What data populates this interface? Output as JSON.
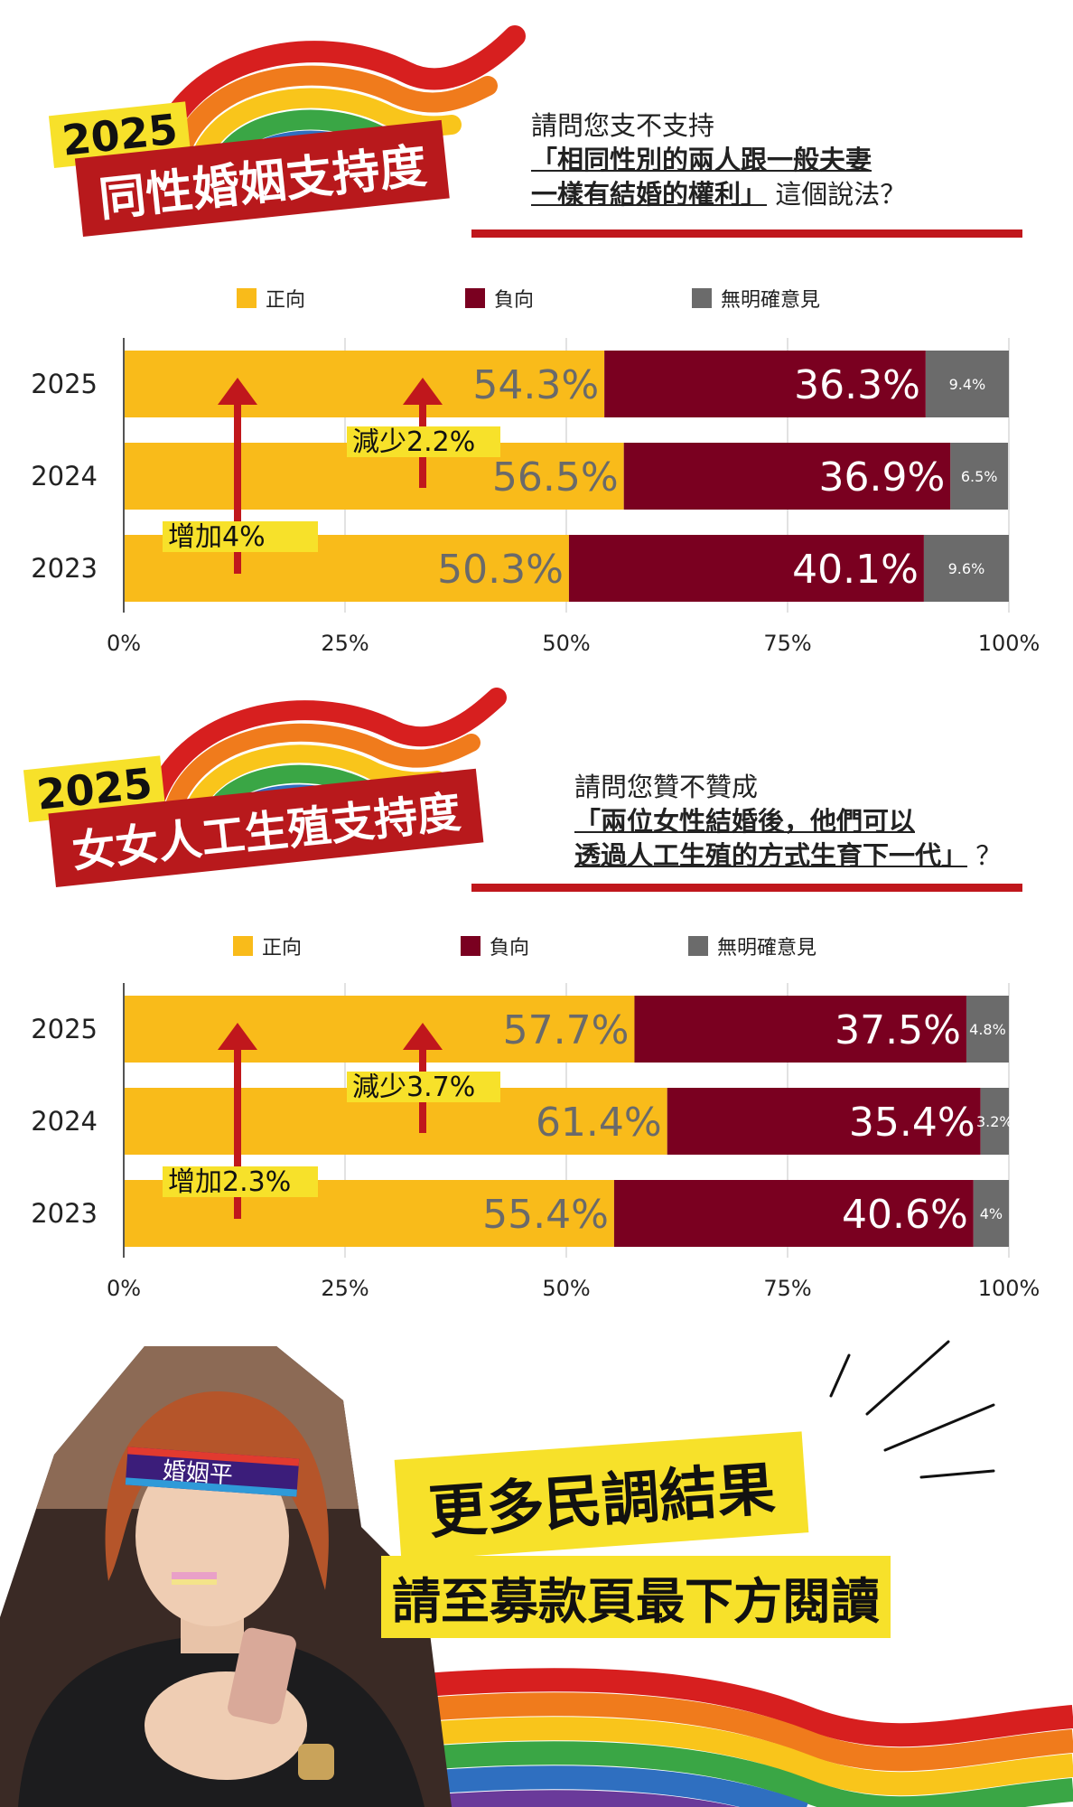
{
  "colors": {
    "positive": "#f9bb1a",
    "negative": "#7a0020",
    "no_opinion": "#6b6b6b",
    "accent_red": "#c0171c",
    "highlight": "#f7e12a"
  },
  "panel1": {
    "year": "2025",
    "title": "同性婚姻支持度",
    "question_prefix": "請問您支不支持",
    "question_hl1": "「相同性別的兩人跟一般夫妻",
    "question_hl2": "一樣有結婚的權利」",
    "question_suffix": "這個說法？",
    "legend": {
      "positive": "正向",
      "negative": "負向",
      "no_opinion": "無明確意見"
    },
    "annotation_down": "減少2.2%",
    "annotation_up": "增加4%"
  },
  "panel2": {
    "year": "2025",
    "title": "女女人工生殖支持度",
    "question_prefix": "請問您贊不贊成",
    "question_hl1": "「兩位女性結婚後，他們可以",
    "question_hl2": "透過人工生殖的方式生育下一代」",
    "question_suffix": "？",
    "legend": {
      "positive": "正向",
      "negative": "負向",
      "no_opinion": "無明確意見"
    },
    "annotation_down": "減少3.7%",
    "annotation_up": "增加2.3%"
  },
  "cta": {
    "line1": "更多民調結果",
    "line2": "請至募款頁最下方閱讀"
  },
  "photo": {
    "headband_text": "婚姻平"
  },
  "chart_data": [
    {
      "type": "bar",
      "orientation": "horizontal",
      "stacked": true,
      "categories": [
        "2025",
        "2024",
        "2023"
      ],
      "series": [
        {
          "name": "正向",
          "values": [
            54.3,
            56.5,
            50.3
          ],
          "labels": [
            "54.3%",
            "56.5%",
            "50.3%"
          ]
        },
        {
          "name": "負向",
          "values": [
            36.3,
            36.9,
            40.1
          ],
          "labels": [
            "36.3%",
            "36.9%",
            "40.1%"
          ]
        },
        {
          "name": "無明確意見",
          "values": [
            9.4,
            6.5,
            9.6
          ],
          "labels": [
            "9.4%",
            "6.5%",
            "9.6%"
          ]
        }
      ],
      "xlim": [
        0,
        100
      ],
      "xticks": [
        "0%",
        "25%",
        "50%",
        "75%",
        "100%"
      ],
      "grid": true,
      "legend": "top"
    },
    {
      "type": "bar",
      "orientation": "horizontal",
      "stacked": true,
      "categories": [
        "2025",
        "2024",
        "2023"
      ],
      "series": [
        {
          "name": "正向",
          "values": [
            57.7,
            61.4,
            55.4
          ],
          "labels": [
            "57.7%",
            "61.4%",
            "55.4%"
          ]
        },
        {
          "name": "負向",
          "values": [
            37.5,
            35.4,
            40.6
          ],
          "labels": [
            "37.5%",
            "35.4%",
            "40.6%"
          ]
        },
        {
          "name": "無明確意見",
          "values": [
            4.8,
            3.2,
            4
          ],
          "labels": [
            "4.8%",
            "3.2%",
            "4%"
          ]
        }
      ],
      "xlim": [
        0,
        100
      ],
      "xticks": [
        "0%",
        "25%",
        "50%",
        "75%",
        "100%"
      ],
      "grid": true,
      "legend": "top"
    }
  ]
}
